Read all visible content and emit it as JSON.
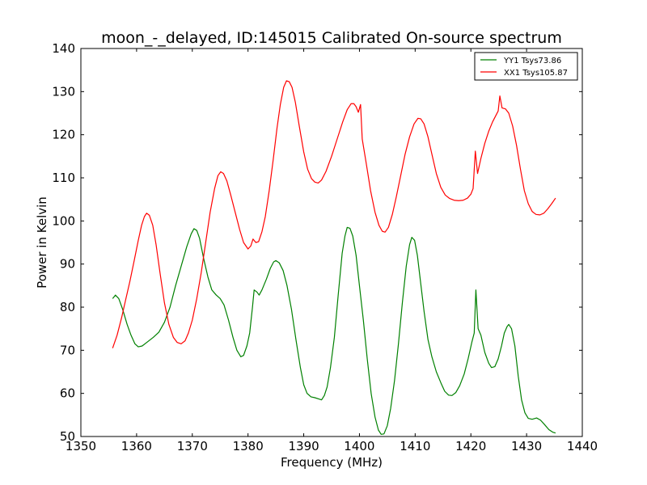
{
  "chart_data": {
    "type": "line",
    "title": "moon_-_delayed, ID:145015 Calibrated On-source spectrum",
    "xlabel": "Frequency (MHz)",
    "ylabel": "Power in Kelvin",
    "xlim": [
      1350,
      1440
    ],
    "ylim": [
      50,
      140
    ],
    "xticks": [
      "1350",
      "1360",
      "1370",
      "1380",
      "1390",
      "1400",
      "1410",
      "1420",
      "1430",
      "1440"
    ],
    "yticks": [
      "50",
      "60",
      "70",
      "80",
      "90",
      "100",
      "110",
      "120",
      "130",
      "140"
    ],
    "legend_position": "top-right",
    "series": [
      {
        "name": "YY1 Tsys73.86",
        "color": "#008000",
        "points": [
          [
            1355.7,
            82.0
          ],
          [
            1356.2,
            82.8
          ],
          [
            1356.8,
            82.0
          ],
          [
            1357.5,
            79.5
          ],
          [
            1358.3,
            76.0
          ],
          [
            1359.0,
            73.5
          ],
          [
            1359.7,
            71.5
          ],
          [
            1360.3,
            70.8
          ],
          [
            1361.0,
            71.0
          ],
          [
            1362.0,
            72.0
          ],
          [
            1363.0,
            73.0
          ],
          [
            1364.0,
            74.2
          ],
          [
            1365.0,
            76.5
          ],
          [
            1366.0,
            80.0
          ],
          [
            1367.0,
            85.0
          ],
          [
            1368.0,
            89.5
          ],
          [
            1369.0,
            94.0
          ],
          [
            1369.8,
            97.0
          ],
          [
            1370.3,
            98.2
          ],
          [
            1370.8,
            97.8
          ],
          [
            1371.3,
            96.0
          ],
          [
            1372.0,
            91.5
          ],
          [
            1372.8,
            87.0
          ],
          [
            1373.5,
            84.0
          ],
          [
            1374.3,
            82.8
          ],
          [
            1375.0,
            82.0
          ],
          [
            1375.7,
            80.5
          ],
          [
            1376.5,
            77.0
          ],
          [
            1377.3,
            73.0
          ],
          [
            1378.0,
            70.0
          ],
          [
            1378.7,
            68.5
          ],
          [
            1379.2,
            68.8
          ],
          [
            1379.8,
            71.0
          ],
          [
            1380.3,
            74.0
          ],
          [
            1380.8,
            80.0
          ],
          [
            1381.1,
            84.0
          ],
          [
            1381.6,
            83.5
          ],
          [
            1382.0,
            82.8
          ],
          [
            1382.5,
            84.0
          ],
          [
            1383.3,
            86.5
          ],
          [
            1384.0,
            89.0
          ],
          [
            1384.6,
            90.5
          ],
          [
            1385.0,
            90.8
          ],
          [
            1385.6,
            90.3
          ],
          [
            1386.3,
            88.5
          ],
          [
            1387.0,
            85.0
          ],
          [
            1387.8,
            79.5
          ],
          [
            1388.6,
            72.5
          ],
          [
            1389.4,
            66.0
          ],
          [
            1390.0,
            62.0
          ],
          [
            1390.6,
            60.0
          ],
          [
            1391.3,
            59.2
          ],
          [
            1392.0,
            59.0
          ],
          [
            1392.7,
            58.7
          ],
          [
            1393.2,
            58.5
          ],
          [
            1393.7,
            59.5
          ],
          [
            1394.2,
            61.5
          ],
          [
            1394.8,
            66.0
          ],
          [
            1395.5,
            73.0
          ],
          [
            1396.2,
            83.0
          ],
          [
            1396.9,
            92.5
          ],
          [
            1397.4,
            96.5
          ],
          [
            1397.8,
            98.5
          ],
          [
            1398.3,
            98.3
          ],
          [
            1398.8,
            96.5
          ],
          [
            1399.4,
            92.0
          ],
          [
            1400.0,
            85.0
          ],
          [
            1400.7,
            77.0
          ],
          [
            1401.4,
            68.0
          ],
          [
            1402.1,
            60.0
          ],
          [
            1402.8,
            54.5
          ],
          [
            1403.4,
            51.5
          ],
          [
            1403.9,
            50.5
          ],
          [
            1404.4,
            50.6
          ],
          [
            1405.0,
            52.5
          ],
          [
            1405.6,
            56.5
          ],
          [
            1406.3,
            63.0
          ],
          [
            1407.0,
            71.5
          ],
          [
            1407.7,
            81.0
          ],
          [
            1408.4,
            89.5
          ],
          [
            1409.0,
            94.5
          ],
          [
            1409.4,
            96.2
          ],
          [
            1409.9,
            95.5
          ],
          [
            1410.4,
            92.0
          ],
          [
            1411.0,
            85.5
          ],
          [
            1411.6,
            79.0
          ],
          [
            1412.3,
            72.5
          ],
          [
            1413.0,
            68.5
          ],
          [
            1413.8,
            65.0
          ],
          [
            1414.6,
            62.5
          ],
          [
            1415.3,
            60.5
          ],
          [
            1416.0,
            59.6
          ],
          [
            1416.6,
            59.5
          ],
          [
            1417.3,
            60.2
          ],
          [
            1418.0,
            61.8
          ],
          [
            1418.8,
            64.5
          ],
          [
            1419.5,
            68.0
          ],
          [
            1420.2,
            72.0
          ],
          [
            1420.6,
            74.0
          ],
          [
            1420.9,
            84.0
          ],
          [
            1421.3,
            75.0
          ],
          [
            1421.8,
            73.5
          ],
          [
            1422.5,
            69.5
          ],
          [
            1423.2,
            67.0
          ],
          [
            1423.7,
            66.0
          ],
          [
            1424.3,
            66.2
          ],
          [
            1424.9,
            68.0
          ],
          [
            1425.5,
            71.0
          ],
          [
            1426.0,
            74.0
          ],
          [
            1426.5,
            75.5
          ],
          [
            1426.8,
            76.0
          ],
          [
            1427.3,
            75.0
          ],
          [
            1427.9,
            71.0
          ],
          [
            1428.5,
            64.0
          ],
          [
            1429.1,
            58.5
          ],
          [
            1429.7,
            55.5
          ],
          [
            1430.3,
            54.2
          ],
          [
            1431.0,
            54.0
          ],
          [
            1431.8,
            54.3
          ],
          [
            1432.5,
            53.8
          ],
          [
            1433.2,
            52.8
          ],
          [
            1434.0,
            51.6
          ],
          [
            1434.7,
            51.0
          ],
          [
            1435.2,
            50.8
          ]
        ]
      },
      {
        "name": "XX1 Tsys105.87",
        "color": "#ff0000",
        "points": [
          [
            1355.7,
            70.5
          ],
          [
            1356.5,
            73.5
          ],
          [
            1357.3,
            77.5
          ],
          [
            1358.0,
            81.5
          ],
          [
            1358.8,
            86.0
          ],
          [
            1359.6,
            91.0
          ],
          [
            1360.3,
            95.5
          ],
          [
            1360.9,
            99.0
          ],
          [
            1361.4,
            101.0
          ],
          [
            1361.8,
            101.8
          ],
          [
            1362.3,
            101.3
          ],
          [
            1362.9,
            99.0
          ],
          [
            1363.5,
            94.5
          ],
          [
            1364.2,
            88.0
          ],
          [
            1365.0,
            81.0
          ],
          [
            1365.8,
            76.0
          ],
          [
            1366.6,
            73.0
          ],
          [
            1367.3,
            71.8
          ],
          [
            1368.0,
            71.5
          ],
          [
            1368.7,
            72.2
          ],
          [
            1369.3,
            74.0
          ],
          [
            1370.0,
            77.0
          ],
          [
            1370.8,
            82.0
          ],
          [
            1371.6,
            88.0
          ],
          [
            1372.4,
            95.0
          ],
          [
            1373.2,
            102.0
          ],
          [
            1374.0,
            107.5
          ],
          [
            1374.6,
            110.5
          ],
          [
            1375.1,
            111.4
          ],
          [
            1375.6,
            111.0
          ],
          [
            1376.2,
            109.3
          ],
          [
            1376.9,
            106.0
          ],
          [
            1377.7,
            102.0
          ],
          [
            1378.5,
            98.0
          ],
          [
            1379.2,
            95.0
          ],
          [
            1380.0,
            93.5
          ],
          [
            1380.5,
            94.2
          ],
          [
            1380.9,
            95.8
          ],
          [
            1381.4,
            95.0
          ],
          [
            1381.9,
            95.2
          ],
          [
            1382.5,
            97.5
          ],
          [
            1383.1,
            101.0
          ],
          [
            1383.8,
            107.0
          ],
          [
            1384.5,
            114.0
          ],
          [
            1385.2,
            121.5
          ],
          [
            1385.8,
            127.0
          ],
          [
            1386.4,
            131.0
          ],
          [
            1386.9,
            132.5
          ],
          [
            1387.4,
            132.3
          ],
          [
            1387.9,
            131.0
          ],
          [
            1388.5,
            127.5
          ],
          [
            1389.2,
            122.0
          ],
          [
            1390.0,
            116.0
          ],
          [
            1390.7,
            112.0
          ],
          [
            1391.4,
            109.8
          ],
          [
            1392.0,
            109.0
          ],
          [
            1392.6,
            108.8
          ],
          [
            1393.2,
            109.5
          ],
          [
            1394.0,
            111.5
          ],
          [
            1395.0,
            115.0
          ],
          [
            1396.0,
            119.0
          ],
          [
            1397.0,
            123.0
          ],
          [
            1397.8,
            125.8
          ],
          [
            1398.5,
            127.2
          ],
          [
            1399.0,
            127.2
          ],
          [
            1399.4,
            126.5
          ],
          [
            1399.8,
            125.2
          ],
          [
            1400.2,
            127.0
          ],
          [
            1400.5,
            119.0
          ],
          [
            1401.2,
            113.5
          ],
          [
            1402.0,
            107.0
          ],
          [
            1402.8,
            102.0
          ],
          [
            1403.5,
            99.0
          ],
          [
            1404.1,
            97.6
          ],
          [
            1404.6,
            97.4
          ],
          [
            1405.2,
            98.5
          ],
          [
            1405.9,
            101.5
          ],
          [
            1406.6,
            105.5
          ],
          [
            1407.4,
            110.5
          ],
          [
            1408.2,
            115.5
          ],
          [
            1409.0,
            119.5
          ],
          [
            1409.8,
            122.5
          ],
          [
            1410.5,
            123.8
          ],
          [
            1411.0,
            123.7
          ],
          [
            1411.6,
            122.5
          ],
          [
            1412.3,
            119.5
          ],
          [
            1413.0,
            115.5
          ],
          [
            1413.8,
            111.0
          ],
          [
            1414.6,
            107.8
          ],
          [
            1415.4,
            106.0
          ],
          [
            1416.2,
            105.2
          ],
          [
            1417.0,
            104.8
          ],
          [
            1417.8,
            104.7
          ],
          [
            1418.6,
            104.8
          ],
          [
            1419.4,
            105.3
          ],
          [
            1420.0,
            106.2
          ],
          [
            1420.4,
            107.5
          ],
          [
            1420.8,
            116.2
          ],
          [
            1421.2,
            111.0
          ],
          [
            1421.8,
            114.5
          ],
          [
            1422.5,
            118.0
          ],
          [
            1423.2,
            120.8
          ],
          [
            1423.9,
            123.0
          ],
          [
            1424.5,
            124.5
          ],
          [
            1424.9,
            125.5
          ],
          [
            1425.2,
            129.0
          ],
          [
            1425.6,
            126.2
          ],
          [
            1426.2,
            126.0
          ],
          [
            1426.8,
            125.0
          ],
          [
            1427.5,
            122.0
          ],
          [
            1428.2,
            117.5
          ],
          [
            1428.9,
            112.0
          ],
          [
            1429.6,
            107.0
          ],
          [
            1430.3,
            104.0
          ],
          [
            1431.0,
            102.2
          ],
          [
            1431.7,
            101.5
          ],
          [
            1432.4,
            101.4
          ],
          [
            1433.1,
            101.8
          ],
          [
            1433.8,
            102.8
          ],
          [
            1434.5,
            104.0
          ],
          [
            1435.2,
            105.3
          ]
        ]
      }
    ]
  }
}
